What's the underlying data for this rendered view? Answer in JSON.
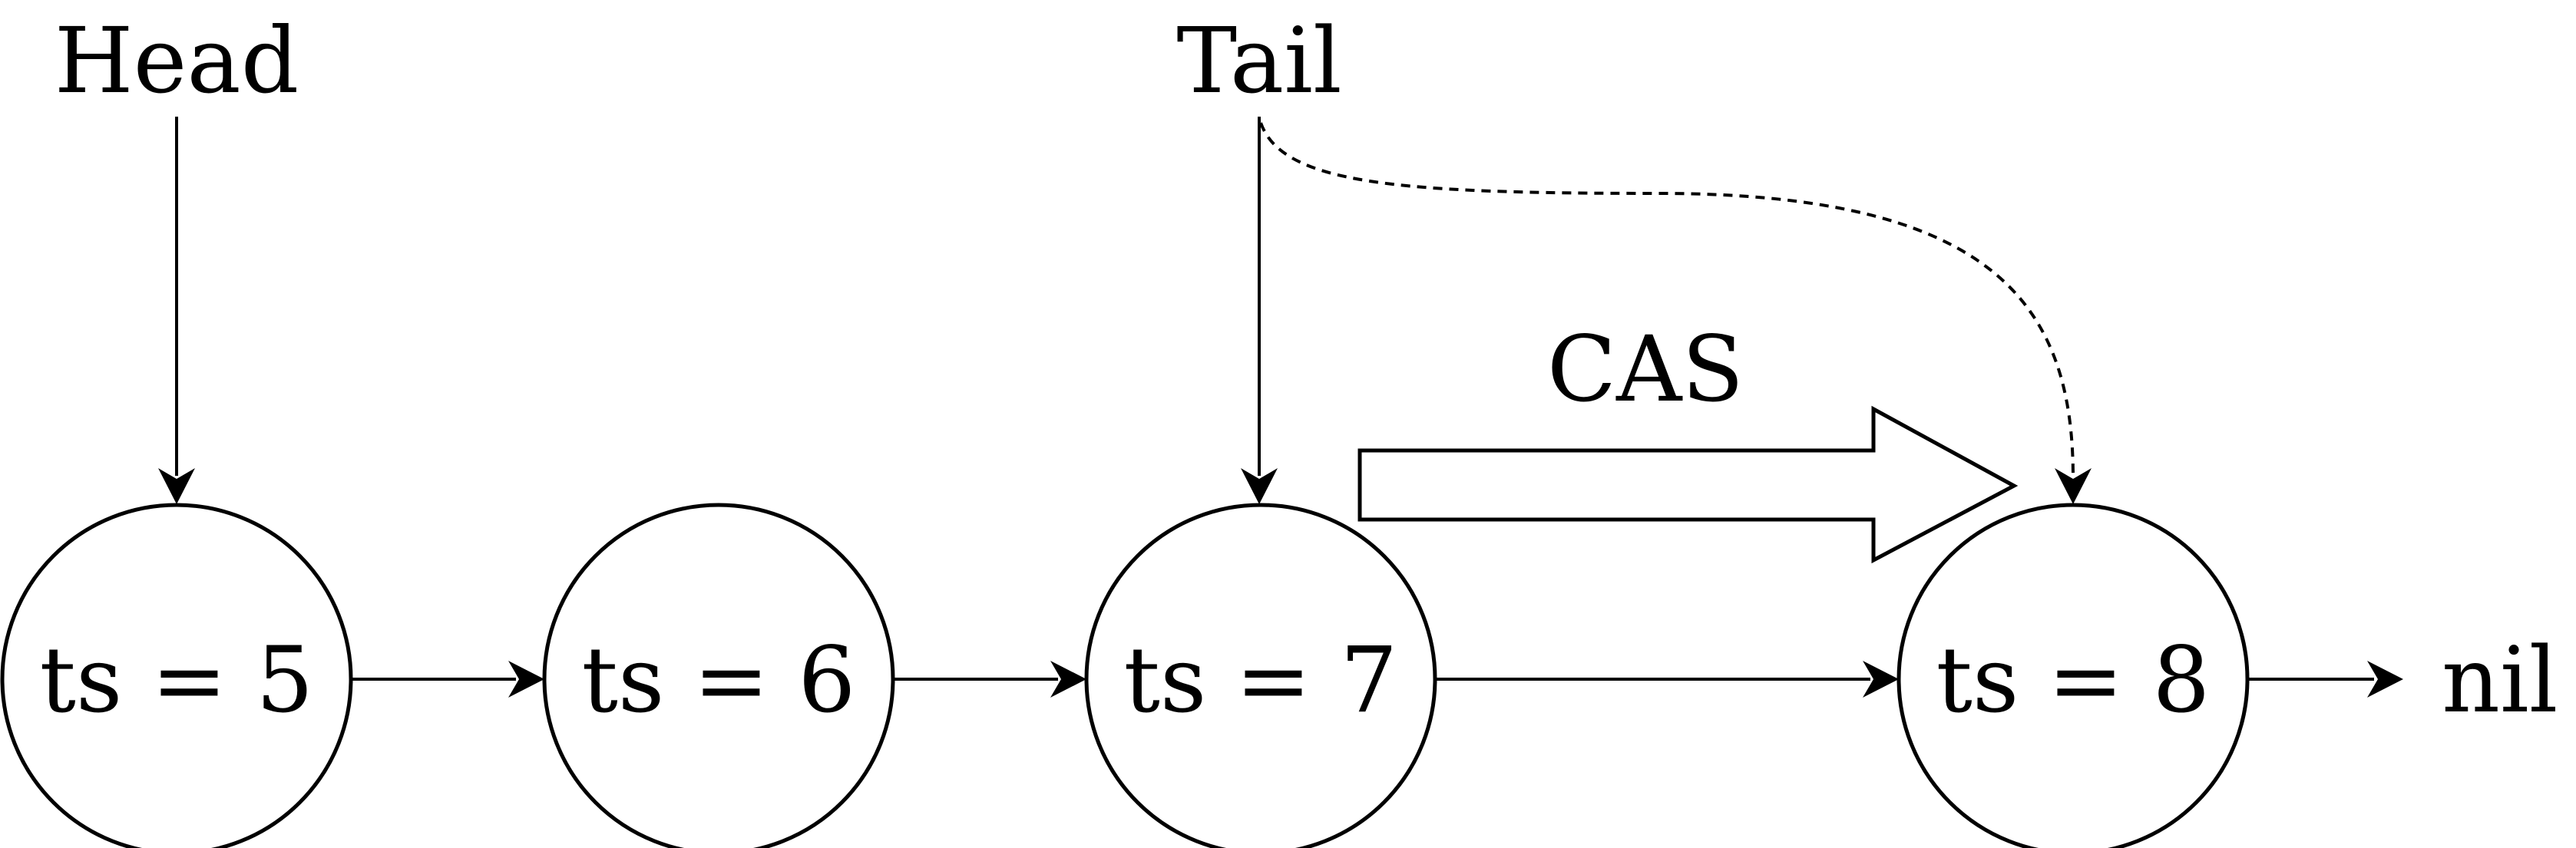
{
  "diagram": {
    "pointers": {
      "head": "Head",
      "tail": "Tail"
    },
    "nodes": [
      {
        "label": "ts = 5"
      },
      {
        "label": "ts = 6"
      },
      {
        "label": "ts = 7"
      },
      {
        "label": "ts = 8"
      }
    ],
    "terminal": "nil",
    "operation": "CAS",
    "colors": {
      "stroke": "#000000",
      "background": "#ffffff"
    }
  }
}
